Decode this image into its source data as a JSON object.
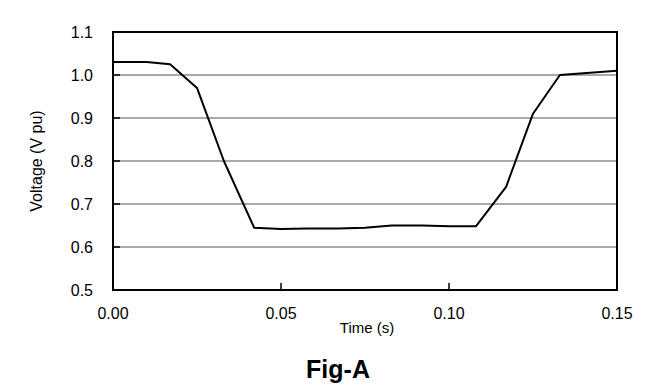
{
  "chart_data": {
    "type": "line",
    "title": "Fig-A",
    "x_label": "Time (s)",
    "y_label": "Voltage (V pu)",
    "x": [
      0,
      0.01,
      0.017,
      0.025,
      0.033,
      0.042,
      0.05,
      0.058,
      0.067,
      0.075,
      0.083,
      0.092,
      0.1,
      0.108,
      0.117,
      0.125,
      0.133,
      0.142,
      0.15
    ],
    "series": [
      {
        "name": "Voltage",
        "color": "#000000",
        "values": [
          1.03,
          1.03,
          1.025,
          0.97,
          0.8,
          0.645,
          0.642,
          0.643,
          0.643,
          0.645,
          0.65,
          0.65,
          0.648,
          0.648,
          0.74,
          0.91,
          1.0,
          1.005,
          1.01
        ]
      }
    ],
    "xlim": [
      0,
      0.15
    ],
    "xticks": [
      {
        "value": 0,
        "label": "0.00"
      },
      {
        "value": 0.05,
        "label": "0.05"
      },
      {
        "value": 0.1,
        "label": "0.10"
      },
      {
        "value": 0.15,
        "label": "0.15"
      }
    ],
    "ylim": [
      0.5,
      1.1
    ],
    "yticks": [
      0.5,
      0.6,
      0.7,
      0.8,
      0.9,
      {
        "value": 1,
        "label": "1.0"
      },
      1.1
    ],
    "grid": true
  }
}
